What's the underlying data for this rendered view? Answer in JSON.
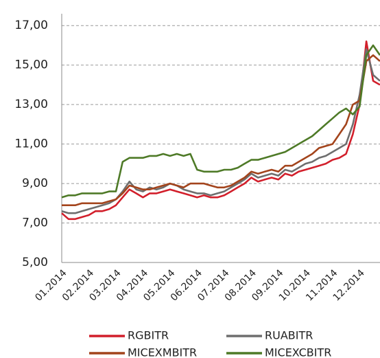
{
  "chart_data": {
    "type": "line",
    "categories": [
      "01.2014",
      null,
      null,
      null,
      "02.2014",
      null,
      null,
      null,
      "03.2014",
      null,
      null,
      null,
      "04.2014",
      null,
      null,
      null,
      "05.2014",
      null,
      null,
      null,
      "06.2014",
      null,
      null,
      null,
      "07.2014",
      null,
      null,
      null,
      "08.2014",
      null,
      null,
      null,
      "09.2014",
      null,
      null,
      null,
      "10.2014",
      null,
      null,
      null,
      "11.2014",
      null,
      null,
      null,
      "12.2014",
      null,
      null,
      null
    ],
    "series": [
      {
        "name": "RGBITR",
        "color": "#d21f2b",
        "values": [
          7.5,
          7.2,
          7.2,
          7.3,
          7.4,
          7.6,
          7.6,
          7.7,
          7.9,
          8.3,
          8.7,
          8.5,
          8.3,
          8.5,
          8.5,
          8.6,
          8.7,
          8.6,
          8.5,
          8.4,
          8.3,
          8.4,
          8.3,
          8.3,
          8.4,
          8.6,
          8.8,
          9.0,
          9.3,
          9.1,
          9.2,
          9.3,
          9.2,
          9.5,
          9.4,
          9.6,
          9.7,
          9.8,
          9.9,
          10.0,
          10.2,
          10.3,
          10.5,
          11.5,
          13.0,
          16.2,
          14.2,
          14.0
        ]
      },
      {
        "name": "RUABITR",
        "color": "#6e6e6e",
        "values": [
          7.6,
          7.5,
          7.5,
          7.6,
          7.7,
          7.8,
          7.9,
          8.0,
          8.2,
          8.6,
          9.1,
          8.7,
          8.6,
          8.8,
          8.7,
          8.8,
          9.0,
          8.9,
          8.7,
          8.6,
          8.5,
          8.5,
          8.4,
          8.5,
          8.6,
          8.8,
          9.0,
          9.2,
          9.5,
          9.3,
          9.4,
          9.5,
          9.4,
          9.7,
          9.6,
          9.8,
          10.0,
          10.1,
          10.3,
          10.4,
          10.6,
          10.8,
          11.0,
          12.0,
          13.5,
          15.8,
          14.5,
          14.2
        ]
      },
      {
        "name": "MICEXMBITR",
        "color": "#a3441c",
        "values": [
          7.9,
          7.9,
          7.9,
          8.0,
          8.0,
          8.0,
          8.0,
          8.1,
          8.2,
          8.5,
          8.9,
          8.8,
          8.7,
          8.7,
          8.8,
          8.9,
          9.0,
          8.9,
          8.8,
          9.0,
          9.0,
          9.0,
          8.9,
          8.8,
          8.8,
          8.9,
          9.1,
          9.3,
          9.6,
          9.5,
          9.6,
          9.7,
          9.6,
          9.9,
          9.9,
          10.1,
          10.3,
          10.5,
          10.8,
          10.9,
          11.0,
          11.5,
          12.0,
          13.0,
          13.2,
          15.2,
          15.5,
          15.2
        ]
      },
      {
        "name": "MICEXCBITR",
        "color": "#4e7a27",
        "values": [
          8.3,
          8.4,
          8.4,
          8.5,
          8.5,
          8.5,
          8.5,
          8.6,
          8.6,
          10.1,
          10.3,
          10.3,
          10.3,
          10.4,
          10.4,
          10.5,
          10.4,
          10.5,
          10.4,
          10.5,
          9.7,
          9.6,
          9.6,
          9.6,
          9.7,
          9.7,
          9.8,
          10.0,
          10.2,
          10.2,
          10.3,
          10.4,
          10.5,
          10.6,
          10.8,
          11.0,
          11.2,
          11.4,
          11.7,
          12.0,
          12.3,
          12.6,
          12.8,
          12.5,
          12.9,
          15.5,
          16.0,
          15.5
        ]
      }
    ],
    "ylim": [
      5,
      17.6
    ],
    "yticks": [
      {
        "value": 5,
        "label": "5,00"
      },
      {
        "value": 7,
        "label": "7,00"
      },
      {
        "value": 9,
        "label": "9,00"
      },
      {
        "value": 11,
        "label": "11,00"
      },
      {
        "value": 13,
        "label": "13,00"
      },
      {
        "value": 15,
        "label": "15,00"
      },
      {
        "value": 17,
        "label": "17,00"
      }
    ],
    "grid": true
  }
}
